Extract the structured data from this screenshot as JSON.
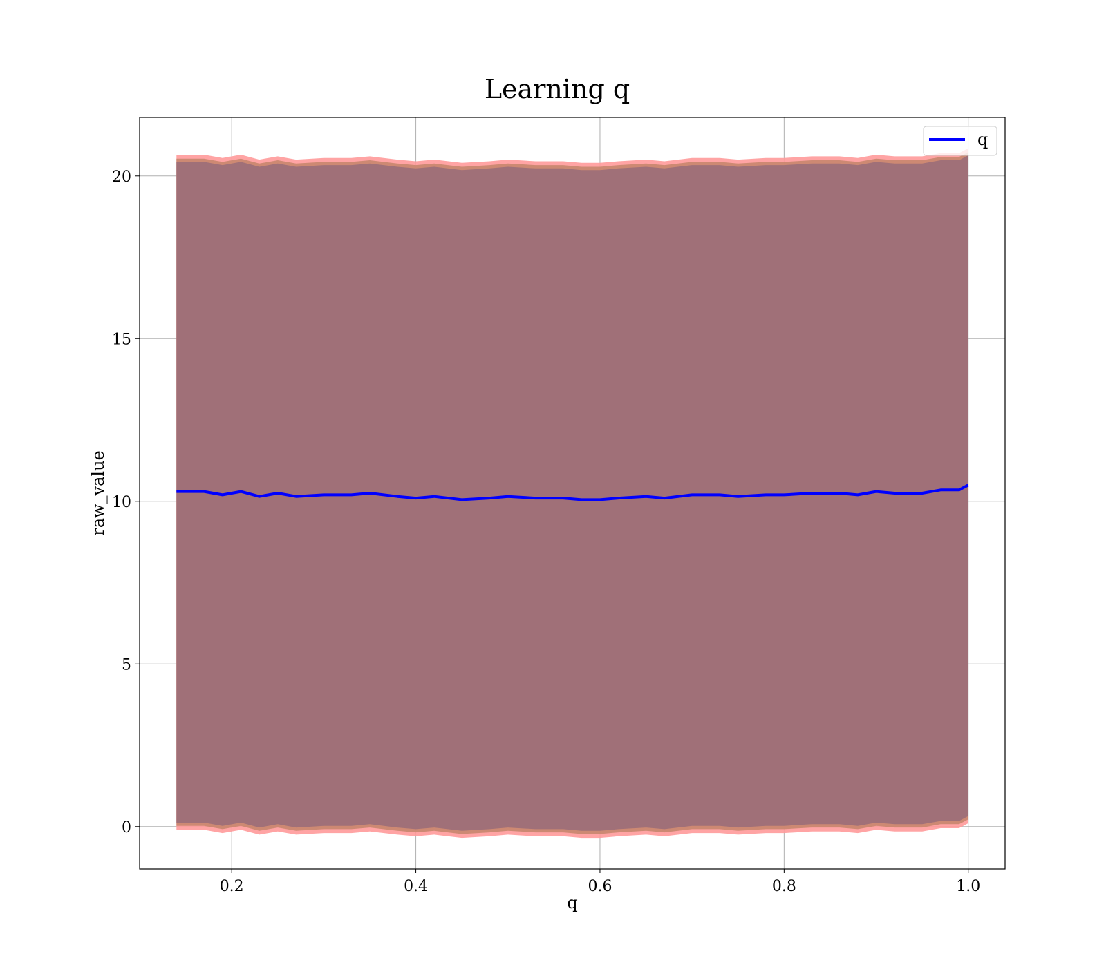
{
  "chart_data": {
    "type": "line",
    "title": "Learning q",
    "xlabel": "q",
    "ylabel": "raw_value",
    "xlim": [
      0.1,
      1.04
    ],
    "ylim": [
      -1.3,
      21.8
    ],
    "xticks": [
      0.2,
      0.4,
      0.6,
      0.8,
      1.0
    ],
    "xtick_labels": [
      "0.2",
      "0.4",
      "0.6",
      "0.8",
      "1.0"
    ],
    "yticks": [
      0,
      5,
      10,
      15,
      20
    ],
    "ytick_labels": [
      "0",
      "5",
      "10",
      "15",
      "20"
    ],
    "grid": true,
    "legend": {
      "position": "top-right",
      "entries": [
        {
          "label": "q",
          "color": "#0000ff"
        }
      ]
    },
    "colors": {
      "line": "#0000ff",
      "band_fill": "#a07078",
      "band_edge_outer": "#ff9a9a",
      "band_edge_inner": "#c8866e"
    },
    "band": {
      "x_start": 0.14,
      "x_end": 1.0,
      "upper_mean": 20.35,
      "lower_mean": 0.0
    },
    "series": [
      {
        "name": "q",
        "x": [
          0.14,
          0.17,
          0.19,
          0.21,
          0.23,
          0.25,
          0.27,
          0.3,
          0.33,
          0.35,
          0.38,
          0.4,
          0.42,
          0.45,
          0.48,
          0.5,
          0.53,
          0.56,
          0.58,
          0.6,
          0.62,
          0.65,
          0.67,
          0.7,
          0.73,
          0.75,
          0.78,
          0.8,
          0.83,
          0.86,
          0.88,
          0.9,
          0.92,
          0.95,
          0.97,
          0.99,
          1.0
        ],
        "y": [
          10.3,
          10.3,
          10.2,
          10.3,
          10.15,
          10.25,
          10.15,
          10.2,
          10.2,
          10.25,
          10.15,
          10.1,
          10.15,
          10.05,
          10.1,
          10.15,
          10.1,
          10.1,
          10.05,
          10.05,
          10.1,
          10.15,
          10.1,
          10.2,
          10.2,
          10.15,
          10.2,
          10.2,
          10.25,
          10.25,
          10.2,
          10.3,
          10.25,
          10.25,
          10.35,
          10.35,
          10.5
        ]
      }
    ]
  }
}
